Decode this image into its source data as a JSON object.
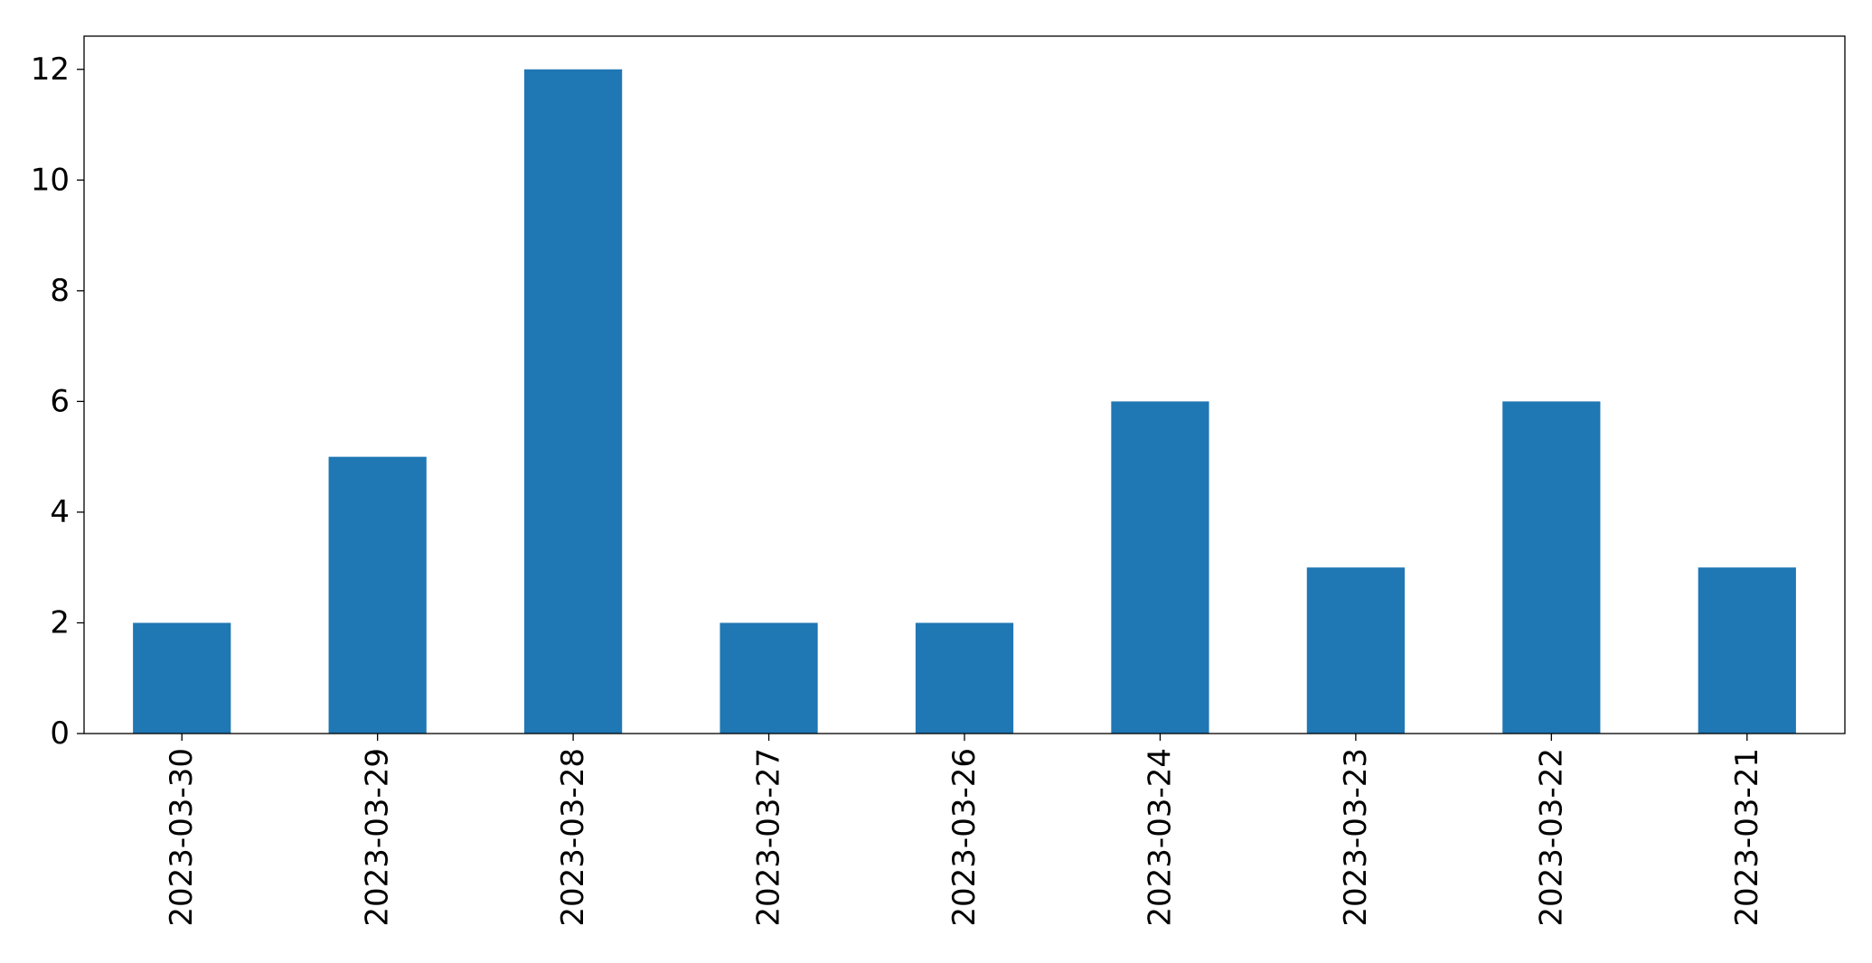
{
  "chart_data": {
    "type": "bar",
    "title": "",
    "xlabel": "",
    "ylabel": "",
    "categories": [
      "2023-03-30",
      "2023-03-29",
      "2023-03-28",
      "2023-03-27",
      "2023-03-26",
      "2023-03-24",
      "2023-03-23",
      "2023-03-22",
      "2023-03-21"
    ],
    "values": [
      2,
      5,
      12,
      2,
      2,
      6,
      3,
      6,
      3
    ],
    "ylim": [
      0,
      12.6
    ],
    "yticks": [
      0,
      2,
      4,
      6,
      8,
      10,
      12
    ],
    "bar_color": "#1f77b4",
    "grid": false,
    "legend": "none"
  }
}
